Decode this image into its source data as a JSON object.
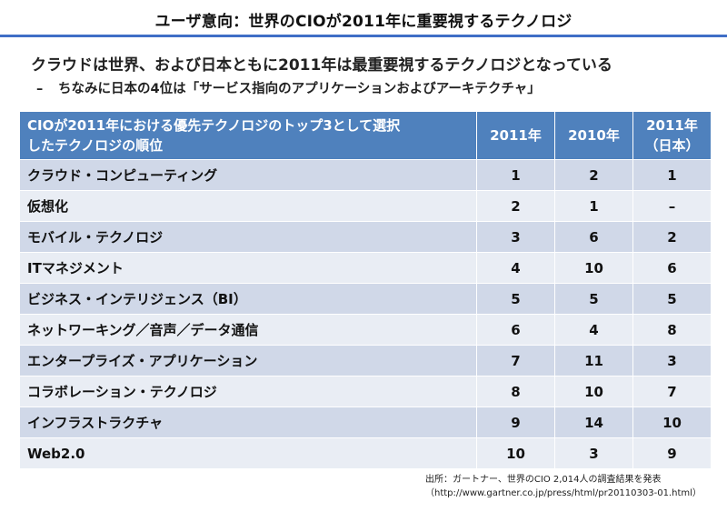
{
  "title": "ユーザ意向：世界のCIOが2011年に重要視するテクノロジ",
  "bullet_main": "クラウドは世界、および日本ともに2011年は最重要視するテクノロジとなっている",
  "bullet_sub_dash": "–",
  "bullet_sub": "ちなみに日本の4位は「サービス指向のアプリケーションおよびアーキテクチャ」",
  "table": {
    "header_label_line1": "CIOが2011年における優先テクノロジのトップ3として選択",
    "header_label_line2": "したテクノロジの順位",
    "header_2011": "2011年",
    "header_2010": "2010年",
    "header_japan_line1": "2011年",
    "header_japan_line2": "（日本）",
    "rows": [
      {
        "label": "クラウド・コンピューティング",
        "y2011": "1",
        "y2010": "2",
        "japan": "1"
      },
      {
        "label": "仮想化",
        "y2011": "2",
        "y2010": "1",
        "japan": "–"
      },
      {
        "label": "モバイル・テクノロジ",
        "y2011": "3",
        "y2010": "6",
        "japan": "2"
      },
      {
        "label": "ITマネジメント",
        "y2011": "4",
        "y2010": "10",
        "japan": "6"
      },
      {
        "label": "ビジネス・インテリジェンス（BI）",
        "y2011": "5",
        "y2010": "5",
        "japan": "5"
      },
      {
        "label": "ネットワーキング／音声／データ通信",
        "y2011": "6",
        "y2010": "4",
        "japan": "8"
      },
      {
        "label": "エンタープライズ・アプリケーション",
        "y2011": "7",
        "y2010": "11",
        "japan": "3"
      },
      {
        "label": "コラボレーション・テクノロジ",
        "y2011": "8",
        "y2010": "10",
        "japan": "7"
      },
      {
        "label": "インフラストラクチャ",
        "y2011": "9",
        "y2010": "14",
        "japan": "10"
      },
      {
        "label": "Web2.0",
        "y2011": "10",
        "y2010": "3",
        "japan": "9"
      }
    ]
  },
  "source_line1": "出所：ガートナー、世界のCIO 2,014人の調査結果を発表",
  "source_line2": "（http://www.gartner.co.jp/press/html/pr20110303-01.html）",
  "colors": {
    "header_bg": "#4f81bd",
    "row_odd_bg": "#d0d8e8",
    "row_even_bg": "#e9edf4",
    "title_rule": "#3f6ec6"
  }
}
